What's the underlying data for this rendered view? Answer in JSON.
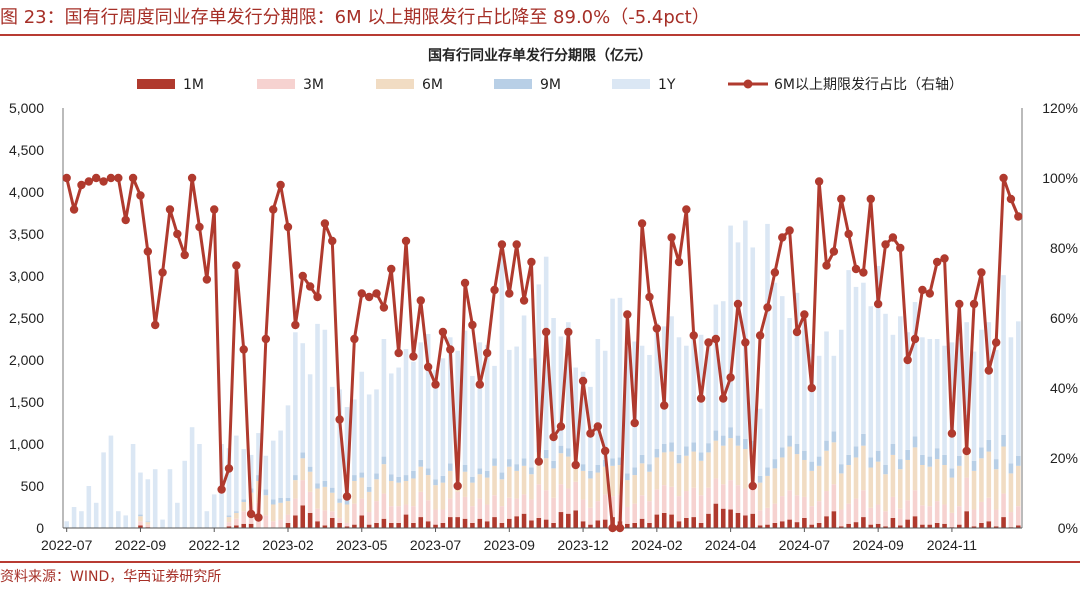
{
  "figure_title": "图 23：国有行周度同业存单发行分期限：6M 以上期限发行占比降至 89.0%（-5.4pct）",
  "source": "资料来源：WIND，华西证券研究所",
  "colors": {
    "c1M": "#b03a2e",
    "c3M": "#f6d2d0",
    "c6M": "#f1dcc3",
    "c9M": "#b8cfe6",
    "c1Y": "#dbe7f4",
    "line": "#b03a2e",
    "accent": "#c0392b"
  },
  "chart_data": {
    "type": "bar",
    "stacked": true,
    "title": "国有行同业存单发行分期限（亿元）",
    "xlabel": "",
    "ylabel": "",
    "ylim": [
      0,
      5000
    ],
    "y2lim": [
      0,
      1.2
    ],
    "yticks": [
      "0",
      "500",
      "1,000",
      "1,500",
      "2,000",
      "2,500",
      "3,000",
      "3,500",
      "4,000",
      "4,500",
      "5,000"
    ],
    "y2ticks": [
      "0%",
      "20%",
      "40%",
      "60%",
      "80%",
      "100%",
      "120%"
    ],
    "xticks": [
      {
        "label": "2022-07",
        "index": 0
      },
      {
        "label": "2022-09",
        "index": 10
      },
      {
        "label": "2022-12",
        "index": 20
      },
      {
        "label": "2023-02",
        "index": 30
      },
      {
        "label": "2023-05",
        "index": 40
      },
      {
        "label": "2023-07",
        "index": 50
      },
      {
        "label": "2023-09",
        "index": 60
      },
      {
        "label": "2023-12",
        "index": 70
      },
      {
        "label": "2024-02",
        "index": 80
      },
      {
        "label": "2024-04",
        "index": 90
      },
      {
        "label": "2024-07",
        "index": 100
      },
      {
        "label": "2024-09",
        "index": 110
      },
      {
        "label": "2024-11",
        "index": 120
      }
    ],
    "legend": [
      "1M",
      "3M",
      "6M",
      "9M",
      "1Y",
      "6M以上期限发行占比（右轴）"
    ],
    "series": [
      {
        "name": "1M",
        "type": "bar",
        "values": [
          0,
          0,
          0,
          0,
          0,
          0,
          0,
          0,
          0,
          0,
          30,
          10,
          0,
          0,
          0,
          0,
          0,
          0,
          0,
          0,
          0,
          0,
          20,
          30,
          50,
          50,
          0,
          0,
          0,
          0,
          60,
          150,
          270,
          180,
          80,
          30,
          120,
          60,
          20,
          40,
          150,
          40,
          60,
          110,
          60,
          60,
          160,
          60,
          130,
          80,
          40,
          60,
          130,
          130,
          110,
          60,
          110,
          80,
          130,
          60,
          110,
          140,
          170,
          90,
          120,
          100,
          60,
          190,
          170,
          210,
          80,
          40,
          90,
          100,
          130,
          80,
          50,
          60,
          110,
          60,
          160,
          180,
          160,
          80,
          120,
          130,
          60,
          170,
          290,
          230,
          220,
          180,
          150,
          170,
          30,
          40,
          60,
          80,
          100,
          70,
          120,
          40,
          60,
          140,
          200,
          20,
          50,
          70,
          130,
          40,
          50,
          20,
          120,
          30,
          100,
          140,
          40,
          40,
          60,
          50,
          10,
          40,
          200,
          20,
          60,
          80,
          20,
          130,
          10,
          30,
          0,
          0,
          0
        ]
      },
      {
        "name": "3M",
        "type": "bar",
        "values": [
          0,
          0,
          0,
          0,
          0,
          0,
          0,
          0,
          0,
          0,
          50,
          30,
          0,
          0,
          0,
          0,
          0,
          0,
          0,
          0,
          0,
          0,
          50,
          80,
          150,
          200,
          300,
          150,
          80,
          100,
          100,
          200,
          300,
          250,
          150,
          180,
          80,
          60,
          40,
          250,
          200,
          150,
          260,
          300,
          200,
          200,
          120,
          200,
          300,
          250,
          180,
          160,
          220,
          300,
          260,
          200,
          240,
          200,
          260,
          200,
          250,
          210,
          230,
          250,
          400,
          350,
          300,
          330,
          300,
          340,
          260,
          200,
          230,
          300,
          250,
          320,
          200,
          230,
          280,
          260,
          300,
          330,
          330,
          300,
          320,
          350,
          330,
          310,
          300,
          290,
          350,
          330,
          320,
          320,
          180,
          200,
          230,
          300,
          350,
          320,
          250,
          220,
          260,
          300,
          320,
          200,
          240,
          280,
          320,
          200,
          230,
          180,
          250,
          200,
          230,
          310,
          230,
          220,
          260,
          230,
          170,
          220,
          400,
          200,
          250,
          280,
          200,
          280,
          180,
          230,
          120,
          130,
          200
        ]
      },
      {
        "name": "6M",
        "type": "bar",
        "values": [
          0,
          0,
          0,
          0,
          0,
          0,
          0,
          0,
          0,
          0,
          60,
          30,
          0,
          0,
          0,
          0,
          0,
          0,
          0,
          0,
          0,
          0,
          60,
          70,
          110,
          170,
          260,
          240,
          200,
          200,
          160,
          220,
          260,
          240,
          240,
          280,
          220,
          180,
          220,
          270,
          250,
          240,
          260,
          350,
          300,
          280,
          280,
          330,
          300,
          300,
          290,
          320,
          330,
          300,
          300,
          280,
          290,
          320,
          350,
          320,
          370,
          330,
          340,
          300,
          380,
          380,
          350,
          370,
          380,
          370,
          340,
          350,
          340,
          330,
          360,
          350,
          320,
          340,
          380,
          350,
          380,
          390,
          420,
          390,
          420,
          430,
          410,
          420,
          450,
          460,
          500,
          470,
          470,
          440,
          330,
          380,
          420,
          460,
          520,
          490,
          440,
          420,
          420,
          480,
          500,
          430,
          460,
          490,
          530,
          480,
          510,
          440,
          500,
          470,
          480,
          510,
          480,
          470,
          500,
          470,
          420,
          480,
          600,
          460,
          520,
          550,
          480,
          560,
          460,
          480,
          320,
          320,
          380
        ]
      },
      {
        "name": "9M",
        "type": "bar",
        "values": [
          0,
          0,
          0,
          0,
          0,
          0,
          0,
          0,
          0,
          0,
          20,
          10,
          0,
          0,
          0,
          0,
          0,
          0,
          0,
          0,
          0,
          0,
          20,
          20,
          30,
          50,
          70,
          70,
          60,
          60,
          40,
          60,
          70,
          60,
          60,
          70,
          60,
          50,
          60,
          70,
          60,
          60,
          70,
          90,
          80,
          70,
          70,
          90,
          80,
          80,
          70,
          80,
          90,
          80,
          80,
          70,
          70,
          80,
          90,
          80,
          90,
          80,
          90,
          80,
          100,
          100,
          90,
          90,
          100,
          90,
          80,
          90,
          90,
          80,
          90,
          90,
          80,
          90,
          100,
          90,
          100,
          100,
          110,
          100,
          110,
          110,
          100,
          110,
          120,
          120,
          130,
          120,
          120,
          110,
          80,
          100,
          110,
          120,
          130,
          120,
          110,
          110,
          110,
          120,
          130,
          110,
          120,
          130,
          140,
          120,
          130,
          110,
          130,
          120,
          120,
          130,
          120,
          120,
          130,
          120,
          110,
          120,
          150,
          120,
          130,
          140,
          120,
          140,
          120,
          120,
          80,
          80,
          100
        ]
      },
      {
        "name": "1Y",
        "type": "bar",
        "values": [
          80,
          250,
          200,
          500,
          300,
          900,
          1100,
          200,
          150,
          1000,
          500,
          500,
          700,
          100,
          700,
          300,
          800,
          1200,
          1000,
          200,
          400,
          1000,
          800,
          900,
          600,
          400,
          500,
          400,
          700,
          800,
          1100,
          1700,
          1300,
          1100,
          1900,
          1800,
          1200,
          1300,
          1100,
          900,
          1200,
          1100,
          1000,
          1400,
          1200,
          1300,
          1500,
          1300,
          1400,
          1600,
          1300,
          1400,
          1500,
          1300,
          1600,
          1200,
          1500,
          1500,
          1100,
          2700,
          1300,
          1400,
          1700,
          1300,
          1900,
          2300,
          1700,
          1300,
          1500,
          900,
          1100,
          1000,
          1500,
          1300,
          1900,
          1900,
          1500,
          1500,
          1300,
          1300,
          1500,
          1400,
          1500,
          1400,
          1200,
          1300,
          1400,
          1200,
          1500,
          1600,
          2400,
          2300,
          2600,
          2300,
          800,
          2900,
          2100,
          1800,
          1400,
          1800,
          1600,
          1400,
          1200,
          1300,
          900,
          1600,
          2200,
          1900,
          1800,
          1800,
          2200,
          1800,
          1300,
          1700,
          1400,
          1600,
          1400,
          1400,
          1300,
          1300,
          1500,
          1400,
          1100,
          1300,
          1400,
          1400,
          1300,
          1900,
          1500,
          1600,
          1700,
          1400,
          1900
        ]
      },
      {
        "name": "6M以上期限发行占比（右轴）",
        "type": "line",
        "axis": "right",
        "values": [
          1.0,
          0.91,
          0.98,
          0.99,
          1.0,
          0.99,
          1.0,
          1.0,
          0.88,
          1.0,
          0.95,
          0.79,
          0.58,
          0.73,
          0.91,
          0.84,
          0.78,
          1.0,
          0.86,
          0.71,
          0.91,
          0.11,
          0.17,
          0.75,
          0.51,
          0.04,
          0.03,
          0.54,
          0.91,
          0.98,
          0.86,
          0.58,
          0.72,
          0.69,
          0.66,
          0.87,
          0.82,
          0.31,
          0.09,
          0.54,
          0.67,
          0.66,
          0.67,
          0.63,
          0.74,
          0.5,
          0.82,
          0.49,
          0.65,
          0.46,
          0.41,
          0.56,
          0.51,
          0.12,
          0.7,
          0.58,
          0.41,
          0.5,
          0.68,
          0.81,
          0.67,
          0.81,
          0.65,
          0.76,
          0.19,
          0.56,
          0.26,
          0.29,
          0.56,
          0.18,
          0.42,
          0.27,
          0.29,
          0.22,
          0.0,
          0.0,
          0.61,
          0.3,
          0.87,
          0.66,
          0.57,
          0.35,
          0.83,
          0.76,
          0.91,
          0.55,
          0.37,
          0.53,
          0.54,
          0.37,
          0.43,
          0.64,
          0.53,
          0.12,
          0.55,
          0.63,
          0.73,
          0.83,
          0.85,
          0.56,
          0.61,
          0.4,
          0.99,
          0.75,
          0.79,
          0.94,
          0.84,
          0.74,
          0.73,
          0.94,
          0.64,
          0.81,
          0.83,
          0.8,
          0.48,
          0.54,
          0.68,
          0.67,
          0.76,
          0.77,
          0.27,
          0.64,
          0.22,
          0.64,
          0.73,
          0.45,
          0.53,
          1.0,
          0.94,
          0.89
        ]
      }
    ]
  }
}
